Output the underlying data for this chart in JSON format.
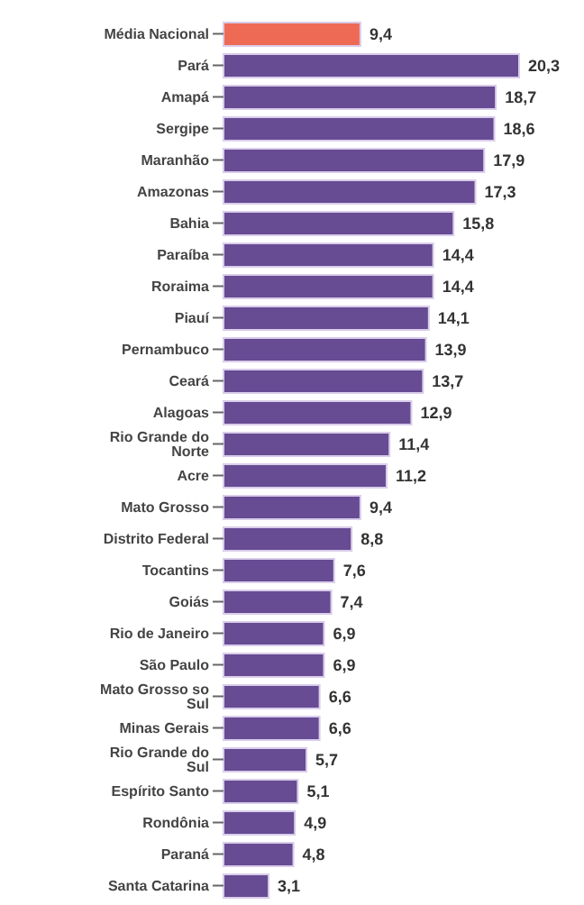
{
  "chart_data": {
    "type": "bar",
    "orientation": "horizontal",
    "value_labels": [
      "9,4",
      "20,3",
      "18,7",
      "18,6",
      "17,9",
      "17,3",
      "15,8",
      "14,4",
      "14,4",
      "14,1",
      "13,9",
      "13,7",
      "12,9",
      "11,4",
      "11,2",
      "9,4",
      "8,8",
      "7,6",
      "7,4",
      "6,9",
      "6,9",
      "6,6",
      "6,6",
      "5,7",
      "5,1",
      "4,9",
      "4,8",
      "3,1"
    ],
    "categories": [
      "Média Nacional",
      "Pará",
      "Amapá",
      "Sergipe",
      "Maranhão",
      "Amazonas",
      "Bahia",
      "Paraíba",
      "Roraima",
      "Piauí",
      "Pernambuco",
      "Ceará",
      "Alagoas",
      "Rio Grande do Norte",
      "Acre",
      "Mato Grosso",
      "Distrito Federal",
      "Tocantins",
      "Goiás",
      "Rio de Janeiro",
      "São Paulo",
      "Mato Grosso so Sul",
      "Minas Gerais",
      "Rio Grande do Sul",
      "Espírito Santo",
      "Rondônia",
      "Paraná",
      "Santa Catarina"
    ],
    "values": [
      9.4,
      20.3,
      18.7,
      18.6,
      17.9,
      17.3,
      15.8,
      14.4,
      14.4,
      14.1,
      13.9,
      13.7,
      12.9,
      11.4,
      11.2,
      9.4,
      8.8,
      7.6,
      7.4,
      6.9,
      6.9,
      6.6,
      6.6,
      5.7,
      5.1,
      4.9,
      4.8,
      3.1
    ],
    "colors": [
      "#ee6a55",
      "#674b93",
      "#674b93",
      "#674b93",
      "#674b93",
      "#674b93",
      "#674b93",
      "#674b93",
      "#674b93",
      "#674b93",
      "#674b93",
      "#674b93",
      "#674b93",
      "#674b93",
      "#674b93",
      "#674b93",
      "#674b93",
      "#674b93",
      "#674b93",
      "#674b93",
      "#674b93",
      "#674b93",
      "#674b93",
      "#674b93",
      "#674b93",
      "#674b93",
      "#674b93",
      "#674b93"
    ]
  }
}
